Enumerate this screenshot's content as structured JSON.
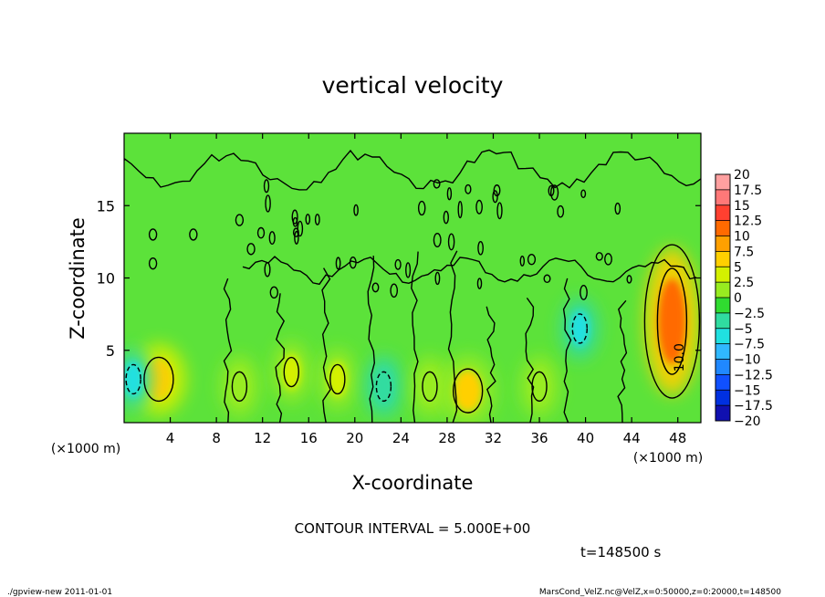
{
  "chart_data": {
    "type": "heatmap",
    "title": "vertical velocity",
    "xlabel": "X-coordinate",
    "ylabel": "Z-coordinate",
    "x_unit_label": "(×1000 m)",
    "z_unit_label": "(×1000 m)",
    "xlim": [
      0,
      50
    ],
    "ylim": [
      0,
      20
    ],
    "x_ticks": [
      {
        "value": 4,
        "label": "4"
      },
      {
        "value": 8,
        "label": "8"
      },
      {
        "value": 12,
        "label": "12"
      },
      {
        "value": 16,
        "label": "16"
      },
      {
        "value": 20,
        "label": "20"
      },
      {
        "value": 24,
        "label": "24"
      },
      {
        "value": 28,
        "label": "28"
      },
      {
        "value": 32,
        "label": "32"
      },
      {
        "value": 36,
        "label": "36"
      },
      {
        "value": 40,
        "label": "40"
      },
      {
        "value": 44,
        "label": "44"
      },
      {
        "value": 48,
        "label": "48"
      }
    ],
    "y_ticks": [
      {
        "value": 5,
        "label": "5"
      },
      {
        "value": 10,
        "label": "10"
      },
      {
        "value": 15,
        "label": "15"
      }
    ],
    "colorbar": {
      "min": -20,
      "max": 20,
      "step": 2.5,
      "labels": [
        "20",
        "17.5",
        "15",
        "12.5",
        "10",
        "7.5",
        "5",
        "2.5",
        "0",
        "−2.5",
        "−5",
        "−7.5",
        "−10",
        "−12.5",
        "−15",
        "−17.5",
        "−20"
      ],
      "colors": [
        "#ffa0a0",
        "#ff7878",
        "#ff4030",
        "#ff6a00",
        "#ffa000",
        "#ffd000",
        "#d4f000",
        "#98ec20",
        "#30dc30",
        "#30dca0",
        "#20e0e0",
        "#30b8ff",
        "#2088ff",
        "#1050ff",
        "#0030e0",
        "#1010b0",
        "#7020c0"
      ]
    },
    "field_features": [
      {
        "x": 3.0,
        "z": 3.0,
        "value": 8
      },
      {
        "x": 10.0,
        "z": 2.5,
        "value": 3
      },
      {
        "x": 14.5,
        "z": 3.5,
        "value": 5
      },
      {
        "x": 18.5,
        "z": 3.0,
        "value": 5
      },
      {
        "x": 22.5,
        "z": 2.5,
        "value": -3
      },
      {
        "x": 26.5,
        "z": 2.5,
        "value": 3
      },
      {
        "x": 29.8,
        "z": 2.2,
        "value": 7
      },
      {
        "x": 36.0,
        "z": 2.5,
        "value": 3
      },
      {
        "x": 39.5,
        "z": 6.5,
        "value": -5
      },
      {
        "x": 47.5,
        "z": 7.0,
        "value": 13
      },
      {
        "x": 0.8,
        "z": 3.0,
        "value": -5
      }
    ],
    "contour_labels": [
      {
        "x": 48.5,
        "z": 4.5,
        "text": "10.0"
      }
    ],
    "contour_interval_text": "CONTOUR INTERVAL = 5.000E+00",
    "time_text": "t=148500 s"
  },
  "footer": {
    "left": "./gpview-new  2011-01-01",
    "right": "MarsCond_VelZ.nc@VelZ,x=0:50000,z=0:20000,t=148500"
  }
}
